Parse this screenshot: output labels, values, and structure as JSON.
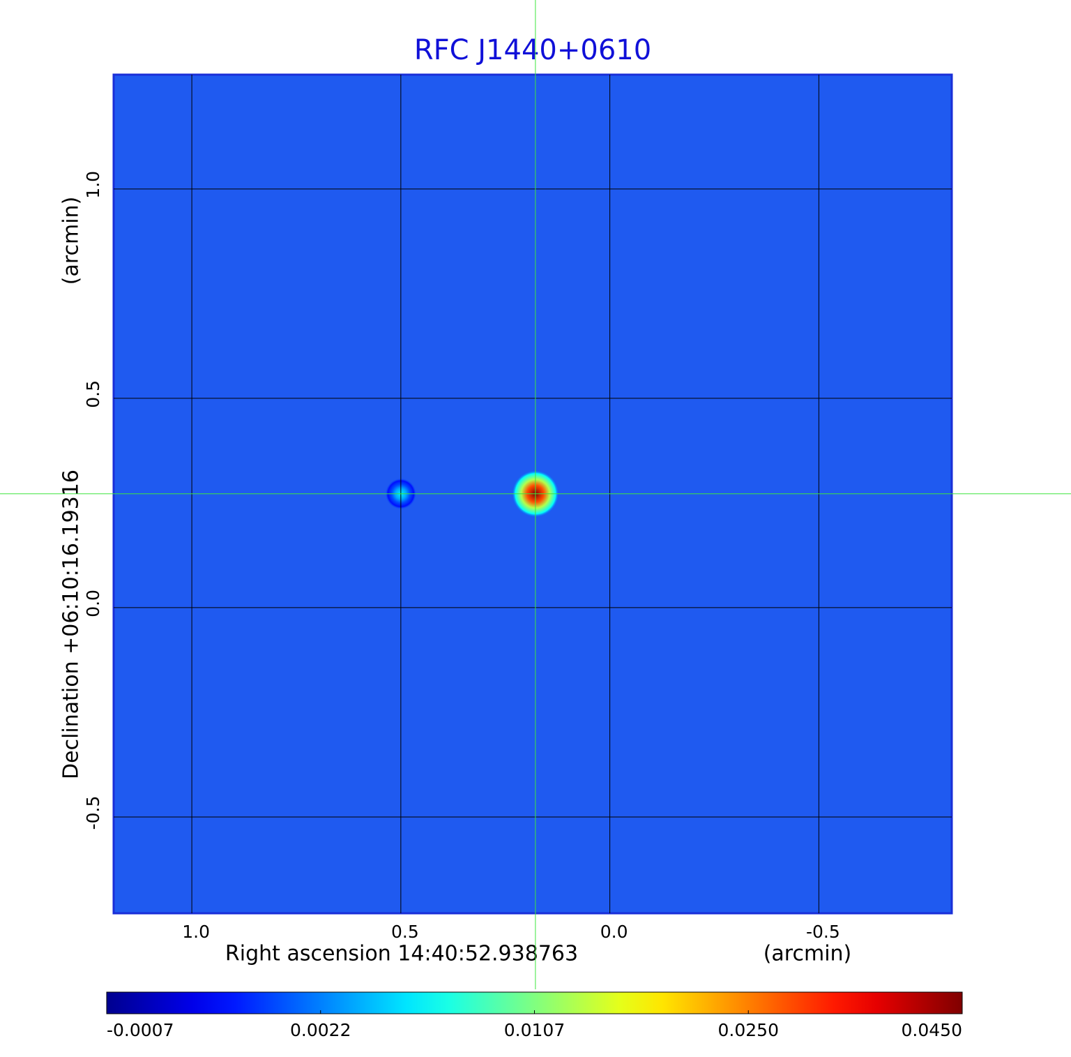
{
  "chart_data": {
    "type": "image",
    "title": "RFC J1440+0610",
    "x_label": "Right ascension  14:40:52.938763",
    "x_unit": "(arcmin)",
    "y_label": "Declination  +06:10:16.19316",
    "y_unit": "(arcmin)",
    "xlim": [
      1.187,
      -0.818
    ],
    "ylim": [
      -0.73,
      1.273
    ],
    "xticks": [
      {
        "value": 1.0,
        "label": "1.0"
      },
      0.5,
      {
        "value": 0.0,
        "label": "0.0"
      },
      -0.5
    ],
    "yticks": [
      {
        "value": 1.0,
        "label": "1.0"
      },
      0.5,
      {
        "value": 0.0,
        "label": "0.0"
      },
      -0.5
    ],
    "grid": true,
    "colormap": "jet",
    "colorbar_ticks": [
      -0.0007,
      0.0022,
      0.0107,
      {
        "value": 0.025,
        "label": "0.0250"
      },
      {
        "value": 0.045,
        "label": "0.0450"
      }
    ],
    "sources": {
      "x": [
        0.178,
        0.5
      ],
      "y": [
        0.272,
        0.272
      ],
      "values": [
        0.045,
        0.006
      ]
    },
    "crosshair": {
      "x": 0.178,
      "y": 0.272
    }
  }
}
